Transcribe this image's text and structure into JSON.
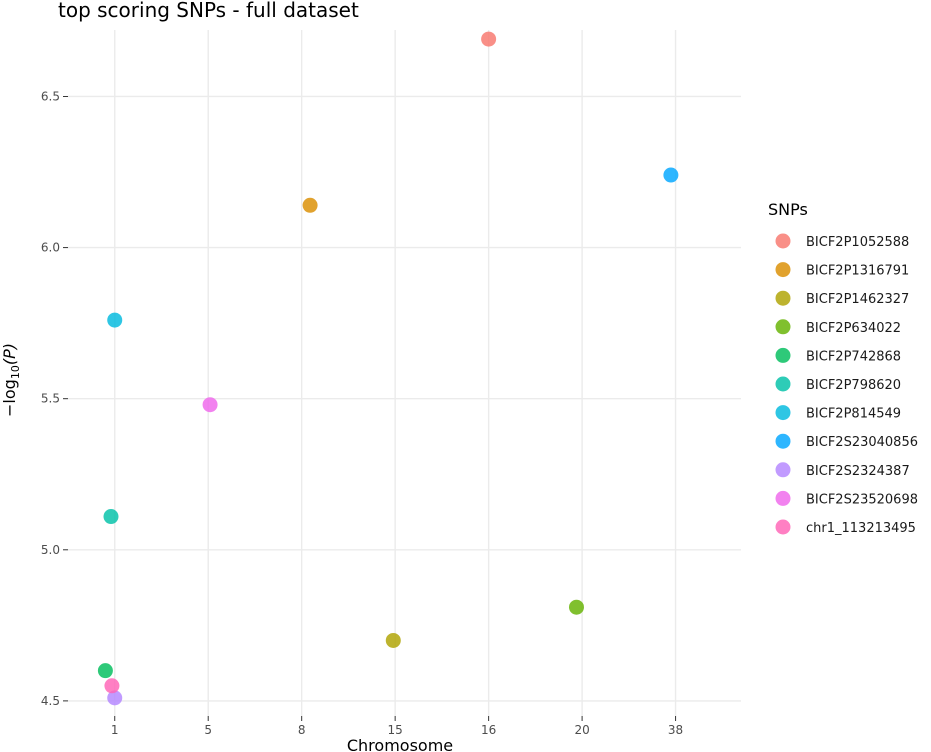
{
  "chart_data": {
    "type": "scatter",
    "title": "top scoring SNPs - full dataset",
    "xlabel": "Chromosome",
    "ylabel": "−log10(P)",
    "ylabel_main": "−log",
    "ylabel_sub": "10",
    "ylabel_var": "(P)",
    "x_categories": [
      "1",
      "5",
      "8",
      "15",
      "16",
      "20",
      "38"
    ],
    "xlim": [
      -0.5,
      6.7
    ],
    "ylim": [
      4.45,
      6.72
    ],
    "y_ticks": [
      4.5,
      5.0,
      5.5,
      6.0,
      6.5
    ],
    "y_tick_labels": [
      "4.5",
      "5.0",
      "5.5",
      "6.0",
      "6.5"
    ],
    "grid": true,
    "legend_position": "right",
    "legend_title": "SNPs",
    "series": [
      {
        "name": "BICF2P1052588",
        "color": "#F8766D",
        "x": 4.0,
        "y": 6.69
      },
      {
        "name": "BICF2P1316791",
        "color": "#DB8E00",
        "x": 2.09,
        "y": 6.14
      },
      {
        "name": "BICF2P1462327",
        "color": "#AEA200",
        "x": 2.98,
        "y": 4.7
      },
      {
        "name": "BICF2P634022",
        "color": "#64B200",
        "x": 4.94,
        "y": 4.81
      },
      {
        "name": "BICF2P742868",
        "color": "#00BD5C",
        "x": -0.1,
        "y": 4.6
      },
      {
        "name": "BICF2P798620",
        "color": "#00C1A7",
        "x": -0.04,
        "y": 5.11
      },
      {
        "name": "BICF2P814549",
        "color": "#00BADE",
        "x": 0.0,
        "y": 5.76
      },
      {
        "name": "BICF2S23040856",
        "color": "#00A6FF",
        "x": 5.95,
        "y": 6.24
      },
      {
        "name": "BICF2S2324387",
        "color": "#B385FF",
        "x": 0.0,
        "y": 4.51
      },
      {
        "name": "BICF2S23520698",
        "color": "#EF67EB",
        "x": 1.02,
        "y": 5.48
      },
      {
        "name": "chr1_113213495",
        "color": "#FF63B6",
        "x": -0.03,
        "y": 4.55
      }
    ]
  }
}
